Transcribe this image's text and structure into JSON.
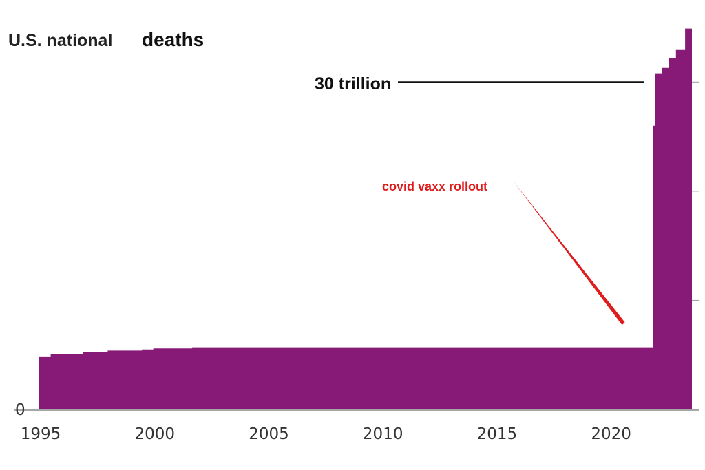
{
  "chart_data": {
    "type": "area",
    "title_part1": "U.S. national",
    "title_part2": "deaths",
    "xlabel": "",
    "ylabel": "",
    "xlim": [
      1995,
      2023.6
    ],
    "ylim": [
      0,
      35
    ],
    "x_ticks": [
      1995,
      2000,
      2005,
      2010,
      2015,
      2020
    ],
    "y_zero_label": "0",
    "grid": false,
    "legend": "none",
    "series": [
      {
        "color": "#861a76",
        "x": [
          1995,
          1995.5,
          1996.9,
          1998.0,
          1999.5,
          2000.0,
          2001.7,
          2005,
          2010,
          2015,
          2019,
          2021.9,
          2022.0,
          2022.3,
          2022.6,
          2022.9,
          2023.3
        ],
        "y": [
          4.8,
          5.1,
          5.3,
          5.4,
          5.5,
          5.6,
          5.7,
          5.7,
          5.7,
          5.7,
          5.7,
          26.0,
          30.8,
          31.3,
          32.2,
          33.0,
          34.9
        ]
      }
    ],
    "annotations": [
      {
        "text": "30 trillion",
        "color": "#111111",
        "target_y": 30.0
      },
      {
        "text": "covid vaxx rollout",
        "color": "#e01b1b",
        "target_x": 2020.6,
        "target_y": 7.8
      }
    ]
  }
}
